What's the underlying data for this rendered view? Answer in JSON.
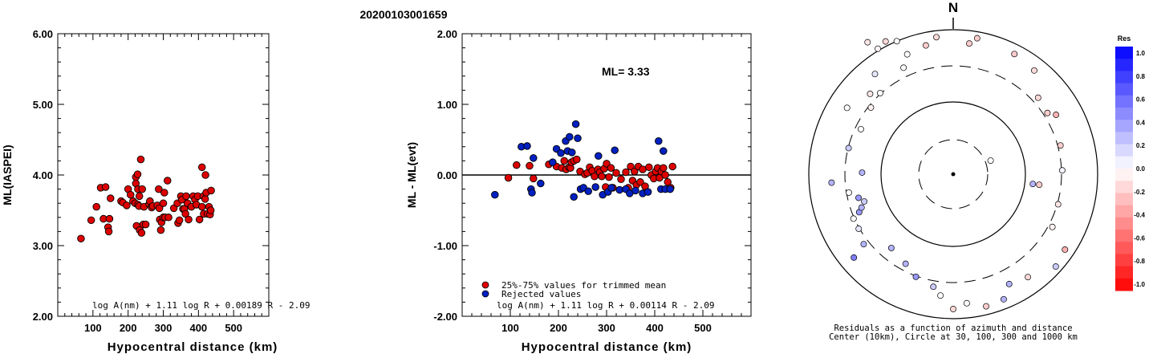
{
  "title": "20200103001659",
  "chart_data": [
    {
      "type": "scatter",
      "xlabel": "Hypocentral distance (km)",
      "ylabel": "ML(IASPEI)",
      "xlim": [
        0,
        600
      ],
      "ylim": [
        2.0,
        6.0
      ],
      "xticks": [
        "100",
        "200",
        "300",
        "400",
        "500"
      ],
      "yticks": [
        "2.00",
        "3.00",
        "4.00",
        "5.00",
        "6.00"
      ],
      "formula": "log A(nm) + 1.11 log R + 0.00189 R - 2.09",
      "series": [
        {
          "color": "#dd0000",
          "points": [
            [
              66,
              3.1
            ],
            [
              95,
              3.36
            ],
            [
              110,
              3.55
            ],
            [
              122,
              3.82
            ],
            [
              130,
              3.38
            ],
            [
              136,
              3.83
            ],
            [
              143,
              3.26
            ],
            [
              145,
              3.2
            ],
            [
              147,
              3.38
            ],
            [
              150,
              3.67
            ],
            [
              180,
              3.63
            ],
            [
              185,
              3.61
            ],
            [
              196,
              3.57
            ],
            [
              200,
              3.8
            ],
            [
              207,
              3.72
            ],
            [
              214,
              3.63
            ],
            [
              220,
              3.6
            ],
            [
              222,
              3.88
            ],
            [
              222,
              3.97
            ],
            [
              224,
              3.28
            ],
            [
              227,
              4.01
            ],
            [
              228,
              3.8
            ],
            [
              228,
              3.58
            ],
            [
              231,
              3.56
            ],
            [
              232,
              3.7
            ],
            [
              233,
              3.22
            ],
            [
              236,
              4.22
            ],
            [
              238,
              3.18
            ],
            [
              240,
              3.8
            ],
            [
              243,
              3.3
            ],
            [
              245,
              3.55
            ],
            [
              250,
              3.3
            ],
            [
              260,
              3.59
            ],
            [
              262,
              3.63
            ],
            [
              267,
              3.54
            ],
            [
              270,
              3.56
            ],
            [
              283,
              3.57
            ],
            [
              287,
              3.8
            ],
            [
              289,
              3.53
            ],
            [
              290,
              3.37
            ],
            [
              293,
              3.22
            ],
            [
              295,
              3.33
            ],
            [
              300,
              3.4
            ],
            [
              300,
              3.6
            ],
            [
              303,
              3.75
            ],
            [
              305,
              3.4
            ],
            [
              312,
              3.92
            ],
            [
              315,
              3.4
            ],
            [
              330,
              3.53
            ],
            [
              340,
              3.6
            ],
            [
              342,
              3.32
            ],
            [
              346,
              3.36
            ],
            [
              350,
              3.7
            ],
            [
              353,
              3.65
            ],
            [
              356,
              3.52
            ],
            [
              360,
              3.52
            ],
            [
              363,
              3.45
            ],
            [
              365,
              3.7
            ],
            [
              369,
              3.6
            ],
            [
              372,
              3.37
            ],
            [
              380,
              3.55
            ],
            [
              385,
              3.7
            ],
            [
              390,
              3.65
            ],
            [
              394,
              3.58
            ],
            [
              398,
              3.7
            ],
            [
              403,
              3.37
            ],
            [
              410,
              4.11
            ],
            [
              410,
              3.55
            ],
            [
              414,
              3.7
            ],
            [
              415,
              3.45
            ],
            [
              419,
              3.66
            ],
            [
              420,
              4.0
            ],
            [
              422,
              3.75
            ],
            [
              426,
              3.45
            ],
            [
              430,
              3.55
            ],
            [
              433,
              3.44
            ],
            [
              435,
              3.5
            ],
            [
              436,
              3.78
            ]
          ]
        }
      ]
    },
    {
      "type": "scatter",
      "xlabel": "Hypocentral distance (km)",
      "ylabel": "ML - ML(evt)",
      "xlim": [
        0,
        600
      ],
      "ylim": [
        -2.0,
        2.0
      ],
      "xticks": [
        "100",
        "200",
        "300",
        "400",
        "500"
      ],
      "yticks": [
        "-2.00",
        "-1.00",
        "0.00",
        "1.00",
        "2.00"
      ],
      "reference_line": 0,
      "annotation": "ML= 3.33",
      "formula": "log A(nm) + 1.11 log R + 0.00114 R - 2.09",
      "legend": [
        {
          "label": "25%-75% values for trimmed mean",
          "color": "#dd0000"
        },
        {
          "label": "Rejected values",
          "color": "#0020c0"
        }
      ],
      "series": [
        {
          "name": "25%-75% values for trimmed mean",
          "color": "#dd0000",
          "points": [
            [
              96,
              -0.04
            ],
            [
              113,
              0.14
            ],
            [
              140,
              0.13
            ],
            [
              148,
              -0.05
            ],
            [
              180,
              0.15
            ],
            [
              196,
              0.12
            ],
            [
              207,
              0.1
            ],
            [
              212,
              0.2
            ],
            [
              216,
              0.08
            ],
            [
              222,
              0.11
            ],
            [
              225,
              0.1
            ],
            [
              227,
              0.18
            ],
            [
              232,
              0.2
            ],
            [
              238,
              0.22
            ],
            [
              245,
              0.05
            ],
            [
              255,
              0.01
            ],
            [
              260,
              0.03
            ],
            [
              265,
              0.11
            ],
            [
              270,
              0.06
            ],
            [
              275,
              -0.02
            ],
            [
              282,
              0.08
            ],
            [
              286,
              0.04
            ],
            [
              290,
              -0.02
            ],
            [
              295,
              0.09
            ],
            [
              298,
              -0.17
            ],
            [
              300,
              0.16
            ],
            [
              305,
              -0.03
            ],
            [
              309,
              0.1
            ],
            [
              313,
              -0.18
            ],
            [
              320,
              0.03
            ],
            [
              330,
              -0.06
            ],
            [
              340,
              0.04
            ],
            [
              345,
              -0.18
            ],
            [
              350,
              0.12
            ],
            [
              354,
              -0.08
            ],
            [
              358,
              0.05
            ],
            [
              362,
              -0.14
            ],
            [
              366,
              0.12
            ],
            [
              370,
              -0.1
            ],
            [
              375,
              0.08
            ],
            [
              380,
              -0.16
            ],
            [
              388,
              0.11
            ],
            [
              393,
              0.0
            ],
            [
              398,
              -0.05
            ],
            [
              402,
              0.05
            ],
            [
              406,
              0.1
            ],
            [
              410,
              -0.04
            ],
            [
              414,
              0.05
            ],
            [
              418,
              0.1
            ],
            [
              422,
              0.0
            ],
            [
              427,
              -0.1
            ],
            [
              433,
              -0.18
            ],
            [
              437,
              0.12
            ]
          ]
        },
        {
          "name": "Rejected values",
          "color": "#0020c0",
          "points": [
            [
              68,
              -0.28
            ],
            [
              123,
              0.4
            ],
            [
              135,
              0.41
            ],
            [
              143,
              -0.2
            ],
            [
              145,
              -0.25
            ],
            [
              148,
              0.24
            ],
            [
              163,
              -0.12
            ],
            [
              188,
              0.18
            ],
            [
              196,
              0.37
            ],
            [
              205,
              0.31
            ],
            [
              215,
              0.48
            ],
            [
              219,
              0.34
            ],
            [
              223,
              0.54
            ],
            [
              228,
              0.32
            ],
            [
              232,
              -0.31
            ],
            [
              236,
              0.72
            ],
            [
              240,
              0.52
            ],
            [
              246,
              -0.2
            ],
            [
              252,
              -0.18
            ],
            [
              262,
              -0.23
            ],
            [
              277,
              -0.17
            ],
            [
              283,
              0.27
            ],
            [
              292,
              -0.28
            ],
            [
              303,
              -0.24
            ],
            [
              310,
              -0.18
            ],
            [
              317,
              0.35
            ],
            [
              327,
              -0.21
            ],
            [
              340,
              -0.2
            ],
            [
              348,
              -0.26
            ],
            [
              360,
              -0.22
            ],
            [
              375,
              -0.26
            ],
            [
              386,
              -0.24
            ],
            [
              408,
              0.48
            ],
            [
              413,
              -0.2
            ],
            [
              418,
              0.34
            ],
            [
              422,
              -0.2
            ],
            [
              432,
              -0.2
            ]
          ]
        }
      ]
    },
    {
      "type": "scatter",
      "subtype": "polar",
      "north_label": "N",
      "caption": [
        "Residuals as a function of azimuth and distance",
        "Center (10km), Circle at 30, 100, 300 and 1000 km"
      ],
      "colorbar": {
        "title": "Res",
        "ticks": [
          "1.0",
          "0.8",
          "0.6",
          "0.4",
          "0.2",
          "0.0",
          "-0.2",
          "-0.4",
          "-0.6",
          "-0.8",
          "-1.0"
        ],
        "range": [
          -1.0,
          1.0
        ],
        "positive_color": "#0000ff",
        "negative_color": "#ff0000"
      },
      "polar_grid_km": [
        30,
        100,
        300,
        1000
      ],
      "stations_az_dist_res": [
        [
          -33,
          245,
          -0.1
        ],
        [
          -31,
          228,
          -0.05
        ],
        [
          -27,
          232,
          -0.15
        ],
        [
          -23,
          225,
          0.0
        ],
        [
          -12,
          205,
          -0.2
        ],
        [
          -7,
          215,
          -0.15
        ],
        [
          10,
          215,
          -0.2
        ],
        [
          27,
          210,
          -0.2
        ],
        [
          38,
          205,
          -0.15
        ],
        [
          57,
          175,
          -0.2
        ],
        [
          60,
          185,
          -0.3
        ],
        [
          75,
          173,
          -0.2
        ],
        [
          88,
          170,
          0.05
        ],
        [
          97,
          135,
          -0.2
        ],
        [
          106,
          170,
          -0.1
        ],
        [
          118,
          175,
          -0.05
        ],
        [
          124,
          210,
          -0.3
        ],
        [
          132,
          215,
          0.2
        ],
        [
          144,
          198,
          -0.15
        ],
        [
          153,
          192,
          0.3
        ],
        [
          158,
          210,
          0.3
        ],
        [
          166,
          212,
          -0.2
        ],
        [
          174,
          202,
          0.0
        ],
        [
          180,
          210,
          -0.15
        ],
        [
          186,
          190,
          0.0
        ],
        [
          190,
          178,
          0.2
        ],
        [
          200,
          170,
          0.4
        ],
        [
          208,
          158,
          0.3
        ],
        [
          230,
          202,
          0.5
        ],
        [
          240,
          170,
          0.1
        ],
        [
          246,
          170,
          0.0
        ],
        [
          248,
          158,
          0.4
        ],
        [
          250,
          152,
          0.3
        ],
        [
          253,
          145,
          0.2
        ],
        [
          256,
          152,
          0.4
        ],
        [
          260,
          165,
          0.0
        ],
        [
          266,
          190,
          0.3
        ],
        [
          284,
          168,
          0.2
        ],
        [
          296,
          160,
          0.0
        ],
        [
          302,
          195,
          0.0
        ],
        [
          314,
          180,
          -0.1
        ],
        [
          318,
          170,
          0.0
        ],
        [
          322,
          198,
          0.1
        ],
        [
          309,
          165,
          -0.05
        ],
        [
          335,
          183,
          0.0
        ],
        [
          339,
          200,
          0.0
        ],
        [
          70,
          62,
          0.0
        ],
        [
          97,
          125,
          0.3
        ],
        [
          220,
          150,
          0.3
        ],
        [
          232,
          177,
          0.3
        ],
        [
          271,
          142,
          0.3
        ],
        [
          7,
          205,
          -0.2
        ],
        [
          48,
          178,
          -0.15
        ]
      ]
    }
  ]
}
